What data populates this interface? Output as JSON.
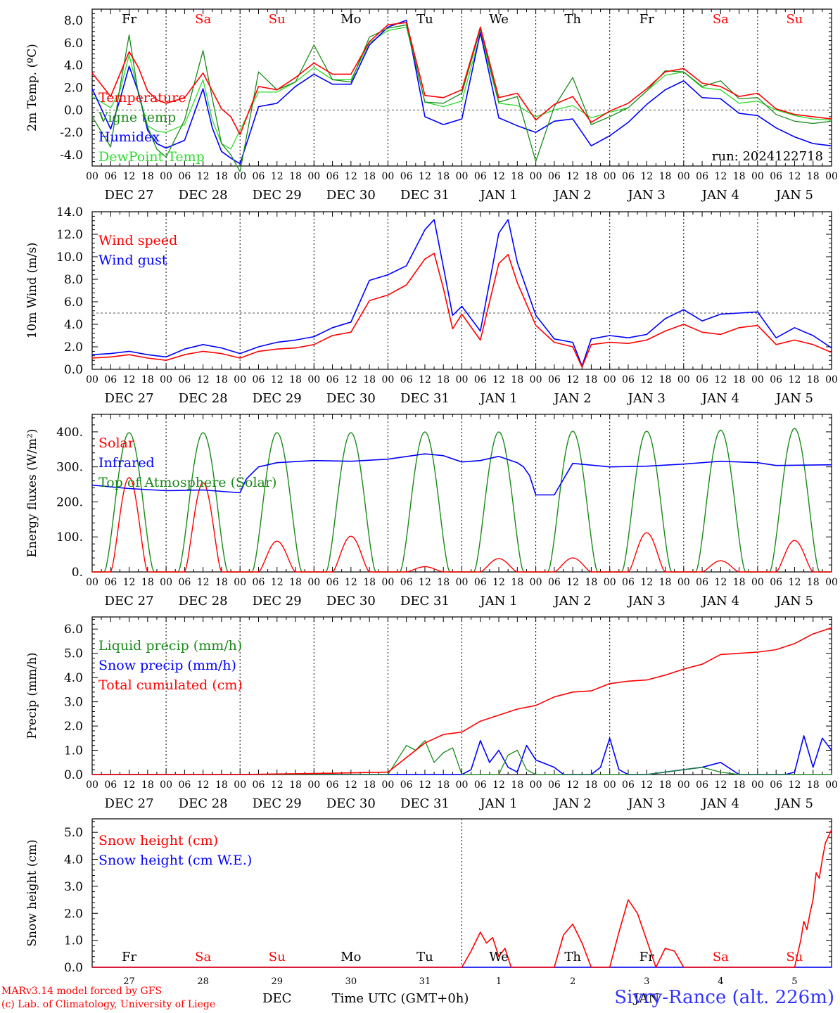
{
  "colors": {
    "red": "#ff0000",
    "green": "#1a8a1a",
    "blue": "#0000ff",
    "lightgreen": "#2ddc2d",
    "weekday": "#000000",
    "weekend": "#ff0000",
    "footer_station": "#3333ff"
  },
  "run_label": "run: 2024122718",
  "days": [
    "Fr",
    "Sa",
    "Su",
    "Mo",
    "Tu",
    "We",
    "Th",
    "Fr",
    "Sa",
    "Su"
  ],
  "weekend_days": [
    "Sa",
    "Su"
  ],
  "date_labels": [
    "DEC 27",
    "DEC 28",
    "DEC 29",
    "DEC 30",
    "DEC 31",
    "JAN  1",
    "JAN  2",
    "JAN  3",
    "JAN  4",
    "JAN  5"
  ],
  "hour_ticks": [
    "00",
    "06",
    "12",
    "18"
  ],
  "bottom_day_numbers": [
    "27",
    "28",
    "29",
    "30",
    "31",
    "1",
    "2",
    "3",
    "4",
    "5"
  ],
  "bottom_month_left": "DEC",
  "bottom_month_right": "JAN",
  "xlabel": "Time UTC (GMT+0h)",
  "footer": {
    "model": "MARv3.14 model forced by GFS",
    "credit": "(c) Lab. of Climatology, University of Liege",
    "station": "Sivry-Rance (alt. 226m)"
  },
  "chart_data": [
    {
      "type": "line",
      "ylabel": "2m Temp. (ºC)",
      "ylim": [
        -5,
        9
      ],
      "yticks": [
        "8.0",
        "6.0",
        "4.0",
        "2.0",
        "0.0",
        "-2.0",
        "-4.0"
      ],
      "ytick_values": [
        8,
        6,
        4,
        2,
        0,
        -2,
        -4
      ],
      "reference_line": 0,
      "x_unit": "hours since DEC 27 00 UTC",
      "legend": [
        "Temperature",
        "Vigne temp",
        "Humidex",
        "DewPoint Temp"
      ],
      "series": [
        {
          "name": "Temperature",
          "color": "red",
          "x": [
            0,
            6,
            9,
            12,
            15,
            18,
            21,
            24,
            30,
            36,
            39,
            42,
            45,
            48,
            54,
            60,
            66,
            72,
            78,
            84,
            90,
            96,
            102,
            108,
            114,
            120,
            126,
            132,
            138,
            144,
            150,
            156,
            162,
            168,
            174,
            180,
            186,
            192,
            198,
            204,
            210,
            216,
            222,
            228,
            234,
            240
          ],
          "y": [
            3.3,
            1.2,
            3.2,
            5.2,
            3.8,
            1.7,
            0.9,
            0.6,
            1.1,
            3.3,
            1.7,
            0.1,
            -0.6,
            -2.2,
            2.1,
            1.8,
            2.9,
            4.2,
            3.2,
            3.2,
            6.1,
            7.6,
            7.8,
            1.3,
            1.1,
            1.8,
            7.4,
            1.1,
            1.5,
            -0.9,
            0.5,
            1.2,
            -1.1,
            -0.1,
            0.6,
            1.9,
            3.4,
            3.7,
            2.4,
            2.1,
            1.2,
            1.5,
            0.1,
            -0.4,
            -0.6,
            -0.8
          ]
        },
        {
          "name": "Vigne temp",
          "color": "green",
          "x": [
            0,
            6,
            9,
            12,
            15,
            18,
            21,
            24,
            30,
            36,
            39,
            42,
            45,
            48,
            54,
            60,
            66,
            72,
            78,
            84,
            90,
            96,
            102,
            108,
            114,
            120,
            126,
            132,
            138,
            144,
            150,
            156,
            162,
            168,
            174,
            180,
            186,
            192,
            198,
            204,
            210,
            216,
            222,
            228,
            234,
            240
          ],
          "y": [
            -0.6,
            -3.3,
            2.0,
            6.7,
            1.4,
            -1.5,
            -3.5,
            -4.2,
            -0.9,
            5.3,
            1.0,
            -3.0,
            -4.0,
            -5.5,
            3.4,
            1.8,
            2.5,
            5.8,
            2.7,
            2.5,
            6.5,
            7.3,
            7.6,
            0.7,
            0.6,
            1.5,
            7.2,
            0.7,
            1.2,
            -4.6,
            0.3,
            2.9,
            -1.3,
            -0.6,
            0.2,
            1.7,
            3.5,
            3.4,
            2.1,
            2.6,
            1.0,
            1.1,
            -0.4,
            -1.0,
            -1.2,
            -1.0
          ]
        },
        {
          "name": "Humidex",
          "color": "blue",
          "x": [
            0,
            6,
            9,
            12,
            15,
            18,
            21,
            24,
            30,
            36,
            39,
            42,
            45,
            48,
            54,
            60,
            66,
            72,
            78,
            84,
            90,
            96,
            102,
            108,
            114,
            120,
            126,
            132,
            138,
            144,
            150,
            156,
            162,
            168,
            174,
            180,
            186,
            192,
            198,
            204,
            210,
            216,
            222,
            228,
            234,
            240
          ],
          "y": [
            1.9,
            -1.7,
            0.9,
            3.9,
            1.6,
            -1.8,
            -3.0,
            -3.4,
            -2.7,
            1.9,
            -1.6,
            -3.7,
            -4.3,
            -4.8,
            0.3,
            0.6,
            2.1,
            3.2,
            2.3,
            2.3,
            5.8,
            7.4,
            8.0,
            -0.6,
            -1.3,
            -0.8,
            6.9,
            -0.7,
            -1.4,
            -2.0,
            -1.0,
            -0.8,
            -3.2,
            -2.3,
            -1.1,
            0.5,
            1.8,
            2.6,
            1.1,
            1.0,
            -0.3,
            -0.5,
            -1.6,
            -2.4,
            -3.0,
            -3.2
          ]
        },
        {
          "name": "DewPoint Temp",
          "color": "lightgreen",
          "x": [
            0,
            6,
            9,
            12,
            15,
            18,
            21,
            24,
            30,
            36,
            39,
            42,
            45,
            48,
            54,
            60,
            66,
            72,
            78,
            84,
            90,
            96,
            102,
            108,
            114,
            120,
            126,
            132,
            138,
            144,
            150,
            156,
            162,
            168,
            174,
            180,
            186,
            192,
            198,
            204,
            210,
            216,
            222,
            228,
            234,
            240
          ],
          "y": [
            1.2,
            0.2,
            1.7,
            4.9,
            1.6,
            -1.4,
            -1.9,
            -2.0,
            -1.3,
            2.7,
            -0.9,
            -3.0,
            -3.5,
            -1.8,
            1.6,
            1.6,
            2.5,
            3.8,
            2.7,
            2.7,
            6.0,
            7.1,
            7.4,
            0.7,
            0.3,
            0.8,
            6.8,
            0.6,
            0.4,
            -0.6,
            0.0,
            0.4,
            -0.7,
            -0.2,
            0.2,
            1.7,
            3.1,
            3.4,
            2.0,
            1.8,
            0.6,
            0.8,
            0.0,
            -0.5,
            -0.8,
            -0.9
          ]
        }
      ]
    },
    {
      "type": "line",
      "ylabel": "10m Wind (m/s)",
      "ylim": [
        0,
        14
      ],
      "yticks": [
        "14.0",
        "12.0",
        "10.0",
        "8.0",
        "6.0",
        "4.0",
        "2.0",
        "0.0"
      ],
      "ytick_values": [
        14,
        12,
        10,
        8,
        6,
        4,
        2,
        0
      ],
      "reference_line": 5,
      "legend": [
        "Wind speed",
        "Wind gust"
      ],
      "series": [
        {
          "name": "Wind speed",
          "color": "red",
          "x": [
            0,
            6,
            12,
            18,
            24,
            30,
            36,
            42,
            48,
            54,
            60,
            66,
            72,
            78,
            84,
            90,
            96,
            102,
            108,
            111,
            114,
            117,
            120,
            126,
            132,
            135,
            138,
            144,
            150,
            156,
            159,
            162,
            168,
            174,
            180,
            186,
            192,
            198,
            204,
            210,
            216,
            222,
            228,
            234,
            240
          ],
          "y": [
            1.0,
            1.1,
            1.3,
            1.0,
            0.8,
            1.3,
            1.6,
            1.4,
            1.0,
            1.6,
            1.8,
            1.9,
            2.2,
            3.0,
            3.3,
            6.1,
            6.6,
            7.5,
            9.8,
            10.3,
            7.2,
            3.6,
            4.9,
            2.6,
            9.4,
            10.2,
            7.7,
            3.9,
            2.4,
            2.0,
            0.2,
            2.2,
            2.4,
            2.3,
            2.6,
            3.4,
            4.0,
            3.3,
            3.1,
            3.7,
            3.9,
            2.2,
            2.6,
            2.2,
            1.5
          ]
        },
        {
          "name": "Wind gust",
          "color": "blue",
          "x": [
            0,
            6,
            12,
            18,
            24,
            30,
            36,
            42,
            48,
            54,
            60,
            66,
            72,
            78,
            84,
            90,
            96,
            102,
            108,
            111,
            114,
            117,
            120,
            126,
            132,
            135,
            138,
            144,
            150,
            156,
            159,
            162,
            168,
            174,
            180,
            186,
            192,
            198,
            204,
            210,
            216,
            222,
            228,
            234,
            240
          ],
          "y": [
            1.3,
            1.4,
            1.6,
            1.3,
            1.1,
            1.8,
            2.2,
            1.9,
            1.4,
            2.0,
            2.4,
            2.6,
            2.9,
            3.7,
            4.2,
            7.9,
            8.4,
            9.2,
            12.4,
            13.3,
            9.1,
            4.8,
            5.6,
            3.4,
            12.1,
            13.3,
            9.5,
            4.8,
            2.7,
            2.4,
            0.3,
            2.7,
            3.0,
            2.8,
            3.1,
            4.5,
            5.3,
            4.3,
            4.9,
            5.0,
            5.1,
            2.8,
            3.7,
            3.0,
            1.9
          ]
        }
      ]
    },
    {
      "type": "line",
      "ylabel": "Energy fluxes (W/m²)",
      "ylim": [
        0,
        450
      ],
      "yticks": [
        "400.",
        "300.",
        "200.",
        "100.",
        "0."
      ],
      "ytick_values": [
        400,
        300,
        200,
        100,
        0
      ],
      "legend": [
        "Solar",
        "Infrared",
        "Top of Atmosphere (Solar)"
      ],
      "solar_peaks": [
        270,
        255,
        88,
        102,
        15,
        38,
        40,
        112,
        32,
        90
      ],
      "toa_peaks": [
        398,
        398,
        398,
        398,
        400,
        400,
        402,
        402,
        405,
        410
      ],
      "series": [
        {
          "name": "Infrared",
          "color": "blue",
          "x": [
            0,
            12,
            24,
            36,
            48,
            50,
            54,
            60,
            72,
            84,
            96,
            108,
            114,
            120,
            126,
            132,
            138,
            140,
            142,
            144,
            150,
            156,
            168,
            180,
            192,
            204,
            216,
            222,
            240
          ],
          "y": [
            248,
            238,
            232,
            234,
            226,
            265,
            300,
            312,
            318,
            316,
            322,
            337,
            332,
            314,
            318,
            330,
            312,
            300,
            275,
            220,
            220,
            310,
            300,
            302,
            308,
            316,
            312,
            304,
            306
          ]
        }
      ]
    },
    {
      "type": "line",
      "ylabel": "Precip (mm/h)",
      "ylim": [
        0,
        6.5
      ],
      "yticks": [
        "6.0",
        "5.0",
        "4.0",
        "3.0",
        "2.0",
        "1.0",
        "0.0"
      ],
      "ytick_values": [
        6,
        5,
        4,
        3,
        2,
        1,
        0
      ],
      "legend": [
        "Liquid precip (mm/h)",
        "Snow precip (mm/h)",
        "Total cumulated (cm)"
      ],
      "series": [
        {
          "name": "Total cumulated (cm)",
          "color": "red",
          "x": [
            0,
            48,
            72,
            96,
            102,
            108,
            114,
            120,
            126,
            132,
            138,
            144,
            150,
            156,
            162,
            168,
            174,
            180,
            186,
            192,
            198,
            204,
            210,
            216,
            222,
            228,
            234,
            240
          ],
          "y": [
            0,
            0,
            0.04,
            0.1,
            0.7,
            1.3,
            1.65,
            1.75,
            2.2,
            2.45,
            2.7,
            2.85,
            3.2,
            3.4,
            3.45,
            3.75,
            3.85,
            3.9,
            4.1,
            4.35,
            4.55,
            4.95,
            5.0,
            5.05,
            5.15,
            5.4,
            5.8,
            6.05
          ]
        },
        {
          "name": "Liquid precip (mm/h)",
          "color": "green",
          "x": [
            0,
            96,
            99,
            102,
            105,
            108,
            111,
            114,
            117,
            120,
            132,
            135,
            138,
            141,
            144,
            180,
            186,
            192,
            198,
            204,
            210,
            240
          ],
          "y": [
            0,
            0,
            0.6,
            1.2,
            1.0,
            1.4,
            0.5,
            0.9,
            1.1,
            0.0,
            0,
            0.8,
            1.0,
            0.2,
            0,
            0,
            0.1,
            0.2,
            0.3,
            0.1,
            0,
            0
          ]
        },
        {
          "name": "Snow precip (mm/h)",
          "color": "blue",
          "x": [
            0,
            120,
            123,
            126,
            129,
            132,
            135,
            138,
            141,
            144,
            150,
            153,
            156,
            159,
            162,
            165,
            168,
            171,
            174,
            180,
            186,
            192,
            198,
            204,
            210,
            225,
            228,
            231,
            234,
            237,
            240
          ],
          "y": [
            0,
            0,
            0.2,
            1.4,
            0.5,
            1.0,
            0.3,
            0.1,
            1.2,
            0.6,
            0.3,
            0,
            0,
            0,
            0,
            0.3,
            1.5,
            0.2,
            0,
            0,
            0.1,
            0.2,
            0.3,
            0.5,
            0,
            0,
            0.1,
            1.6,
            0.3,
            1.5,
            1.0
          ]
        }
      ]
    },
    {
      "type": "line",
      "ylabel": "Snow height (cm)",
      "ylim": [
        0,
        5.5
      ],
      "yticks": [
        "5.0",
        "4.0",
        "3.0",
        "2.0",
        "1.0",
        "0.0"
      ],
      "ytick_values": [
        5,
        4,
        3,
        2,
        1,
        0
      ],
      "legend": [
        "Snow height (cm)",
        "Snow height (cm W.E.)"
      ],
      "series": [
        {
          "name": "Snow height (cm)",
          "color": "red",
          "x": [
            0,
            120,
            123,
            126,
            128,
            130,
            132,
            134,
            136,
            138,
            150,
            153,
            156,
            159,
            162,
            168,
            171,
            174,
            177,
            180,
            183,
            186,
            189,
            192,
            195,
            228,
            230,
            231,
            232,
            233,
            234,
            235,
            236,
            237,
            238,
            240
          ],
          "y": [
            0,
            0,
            0.6,
            1.3,
            0.9,
            1.1,
            0.4,
            0.7,
            0.0,
            0,
            0,
            1.2,
            1.6,
            0.9,
            0,
            0,
            1.3,
            2.5,
            2.0,
            1.0,
            0.0,
            0.7,
            0.6,
            0,
            0,
            0,
            1.0,
            1.7,
            1.4,
            2.0,
            2.5,
            3.5,
            3.3,
            4.0,
            4.6,
            5.1
          ]
        },
        {
          "name": "Snow height (cm W.E.)",
          "color": "blue",
          "x": [
            0,
            240
          ],
          "y": [
            0,
            0
          ]
        }
      ]
    }
  ]
}
